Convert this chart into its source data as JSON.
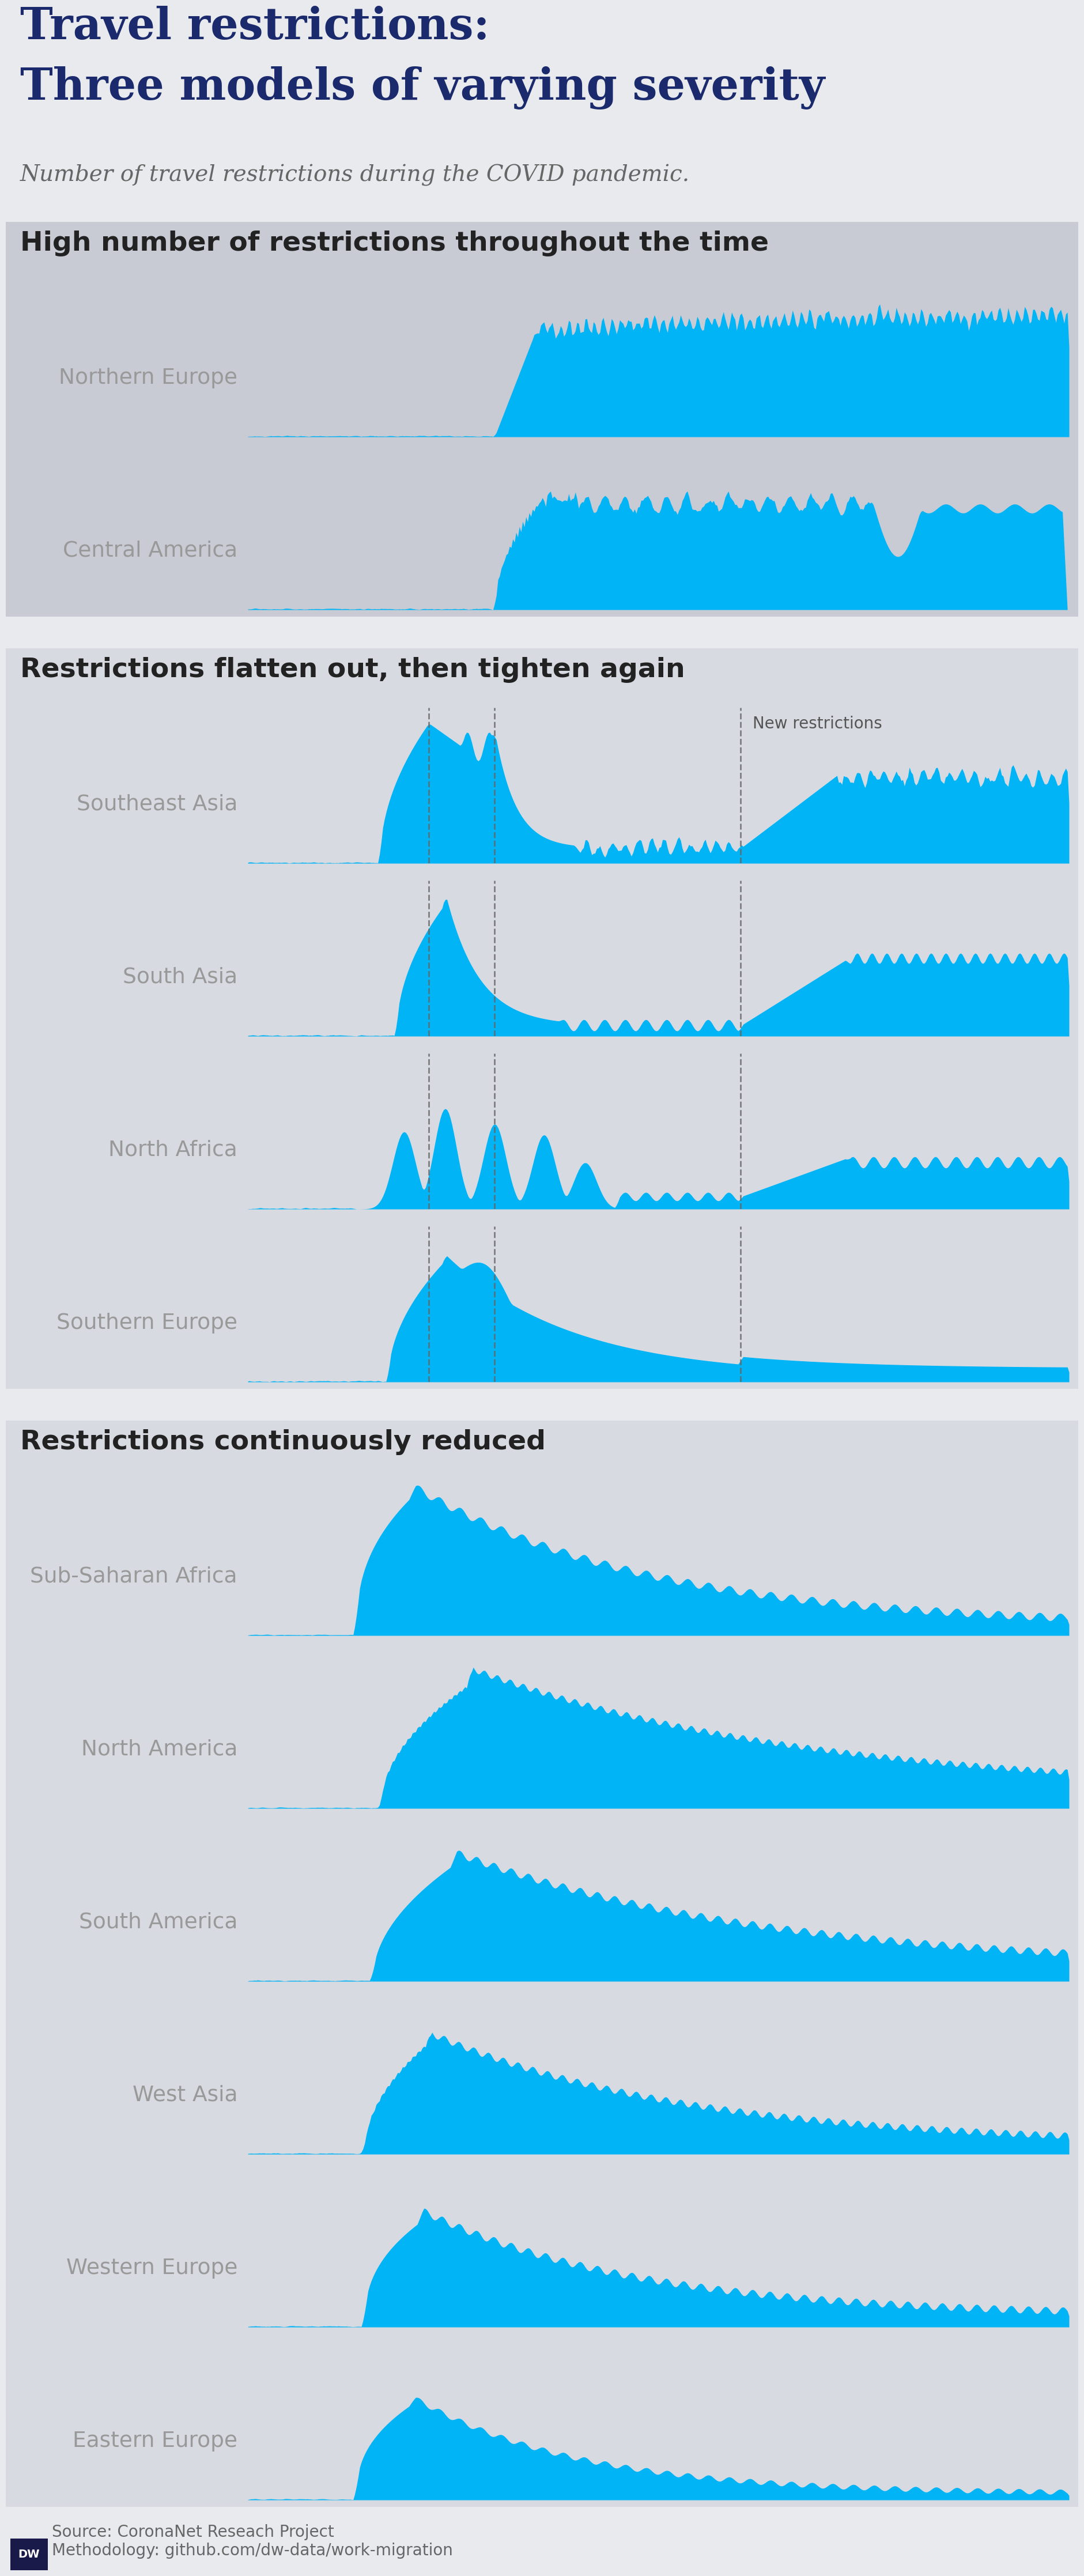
{
  "title_line1": "Travel restrictions:",
  "title_line2": "Three models of varying severity",
  "subtitle": "Number of travel restrictions during the COVID pandemic.",
  "bg_outer": "#e8eaed",
  "bg_group1": "#c8cad4",
  "bg_group2": "#d8dae2",
  "bg_group3": "#d8dae2",
  "fill_color": "#00b4f5",
  "title_color": "#1a2a6c",
  "section_title_color": "#222222",
  "region_label_color": "#999999",
  "subtitle_color": "#666666",
  "source_text": "Source: CoronaNet Reseach Project\nMethodology: github.com/dw-data/work-migration",
  "groups": [
    {
      "title": "High number of restrictions throughout the time",
      "bg": "#c8cad4",
      "regions": [
        "Northern Europe",
        "Central America"
      ],
      "vlines": [],
      "new_restrictions_vline": null
    },
    {
      "title": "Restrictions flatten out, then tighten again",
      "bg": "#d8dae2",
      "regions": [
        "Southeast Asia",
        "South Asia",
        "North Africa",
        "Southern Europe"
      ],
      "vlines": [
        0.22,
        0.3
      ],
      "new_restrictions_vline": 0.6
    },
    {
      "title": "Restrictions continuously reduced",
      "bg": "#d8dae2",
      "regions": [
        "Sub-Saharan Africa",
        "North America",
        "South America",
        "West Asia",
        "Western Europe",
        "Eastern Europe"
      ],
      "vlines": [],
      "new_restrictions_vline": null
    }
  ]
}
